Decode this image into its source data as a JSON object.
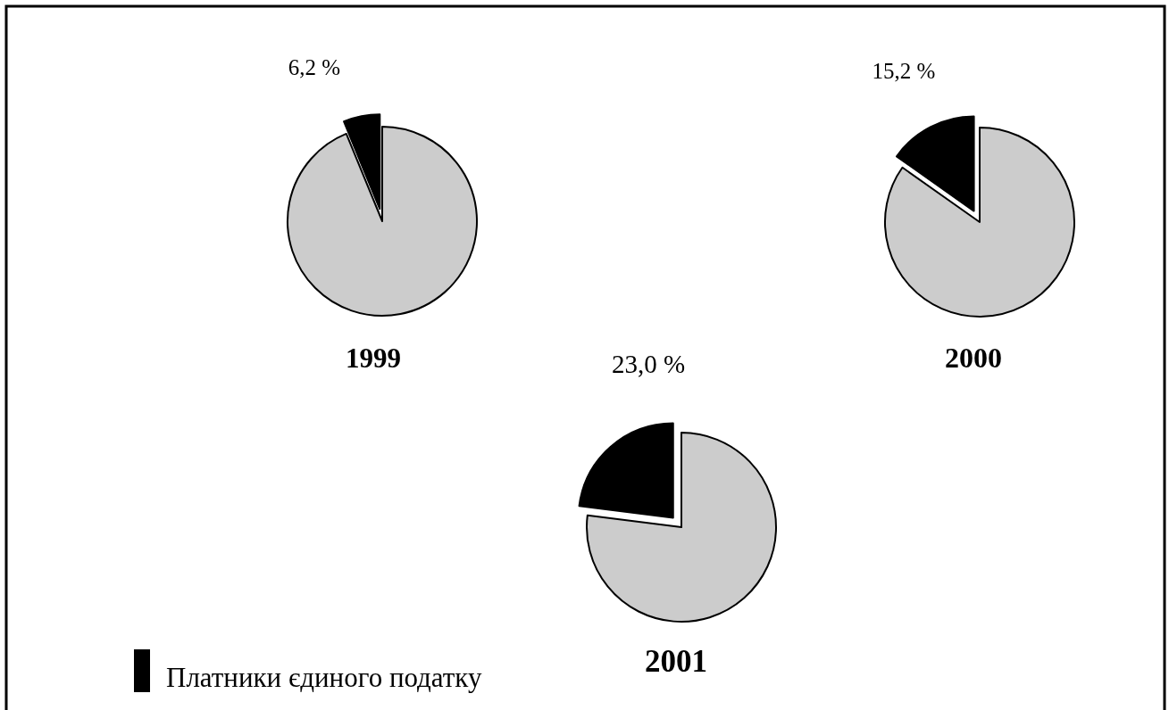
{
  "chart_data": [
    {
      "type": "pie",
      "title": "1999",
      "categories": [
        null,
        null
      ],
      "values": [
        6.2,
        93.8
      ],
      "colors": [
        "#000000",
        "#cccccc"
      ],
      "value_labels": [
        "6,2 %",
        null
      ]
    },
    {
      "type": "pie",
      "title": "2000",
      "categories": [
        null,
        null
      ],
      "values": [
        15.2,
        84.8
      ],
      "colors": [
        "#000000",
        "#cccccc"
      ],
      "value_labels": [
        "15,2 %",
        null
      ]
    },
    {
      "type": "pie",
      "title": "2001",
      "categories": [
        "Платники єдиного податку",
        null
      ],
      "values": [
        23.0,
        77.0
      ],
      "colors": [
        "#000000",
        "#cccccc"
      ],
      "value_labels": [
        "23,0 %",
        null
      ],
      "legend": "bottom left"
    }
  ]
}
